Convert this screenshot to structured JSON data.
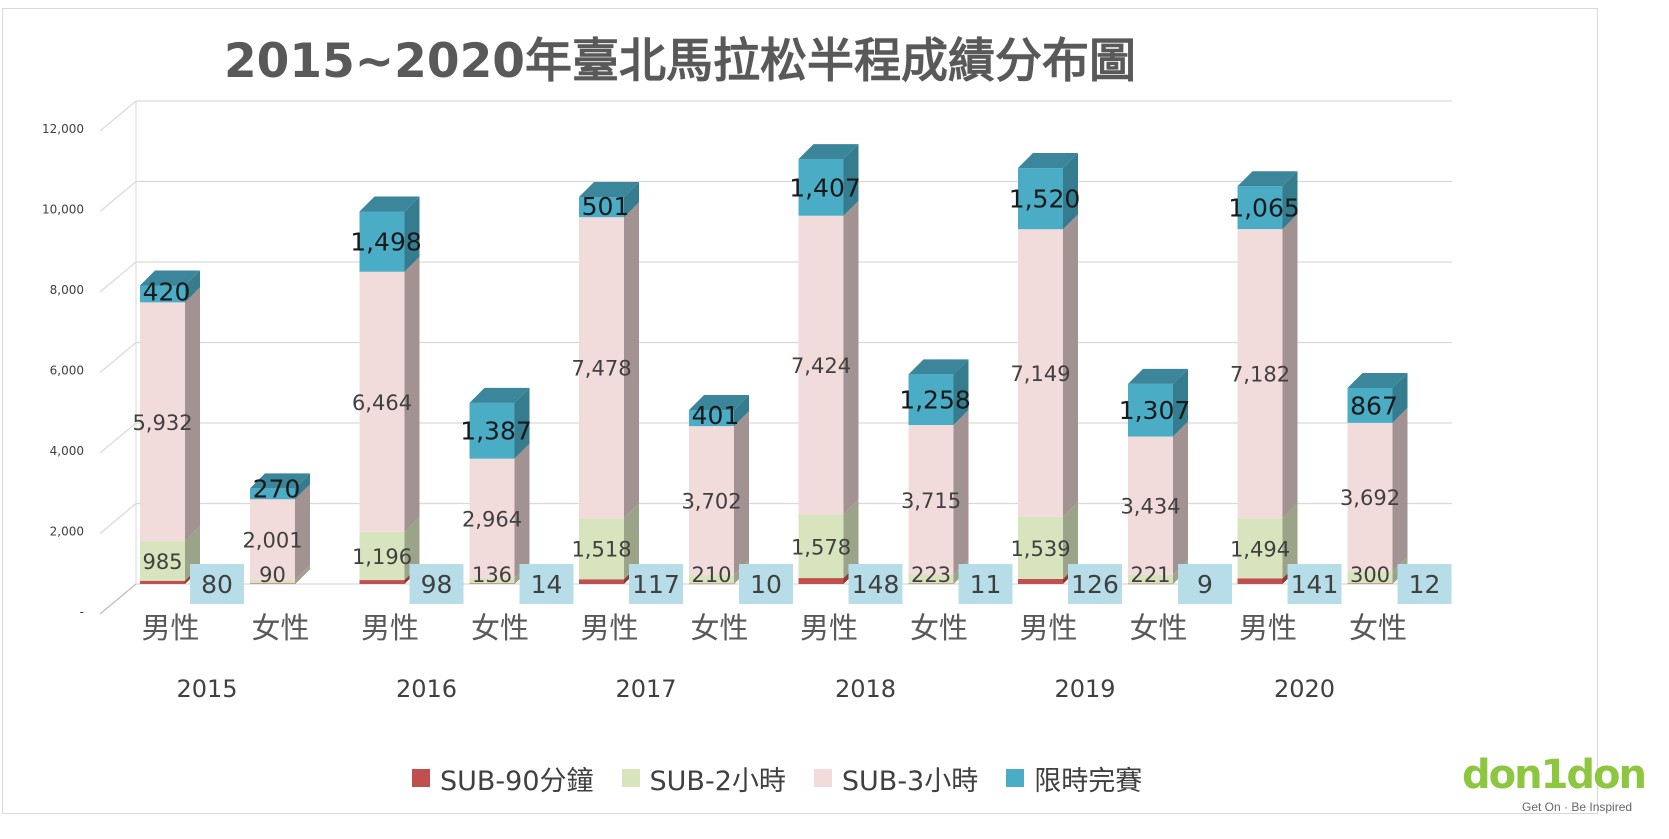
{
  "chart_data": {
    "type": "bar",
    "stacked": true,
    "title": "2015~2020年臺北馬拉松半程成績分布圖",
    "xlabel": "",
    "ylabel": "",
    "ylim": [
      0,
      12000
    ],
    "yticks": [
      {
        "value": 0,
        "label": "-"
      },
      {
        "value": 2000,
        "label": "2,000"
      },
      {
        "value": 4000,
        "label": "4,000"
      },
      {
        "value": 6000,
        "label": "6,000"
      },
      {
        "value": 8000,
        "label": "8,000"
      },
      {
        "value": 10000,
        "label": "10,000"
      },
      {
        "value": 12000,
        "label": "12,000"
      }
    ],
    "grid": true,
    "legend": "bottom",
    "years": [
      "2015",
      "2016",
      "2017",
      "2018",
      "2019",
      "2020"
    ],
    "genders": [
      "男性",
      "女性"
    ],
    "categories": [
      "2015 男性",
      "2015 女性",
      "2016 男性",
      "2016 女性",
      "2017 男性",
      "2017 女性",
      "2018 男性",
      "2018 女性",
      "2019 男性",
      "2019 女性",
      "2020 男性",
      "2020 女性"
    ],
    "series": [
      {
        "name": "SUB-90分鐘",
        "color": "#c0504d",
        "values": [
          80,
          14,
          98,
          14,
          117,
          10,
          148,
          11,
          126,
          9,
          141,
          12
        ]
      },
      {
        "name": "SUB-2小時",
        "color": "#d7e4bd",
        "values": [
          985,
          90,
          1196,
          136,
          1518,
          210,
          1578,
          223,
          1539,
          221,
          1494,
          300
        ]
      },
      {
        "name": "SUB-3小時",
        "color": "#f2dcdb",
        "values": [
          5932,
          2001,
          6464,
          2964,
          7478,
          3702,
          7424,
          3715,
          7149,
          3434,
          7182,
          3692
        ]
      },
      {
        "name": "限時完賽",
        "color": "#4bacc6",
        "values": [
          420,
          270,
          1498,
          1387,
          501,
          401,
          1407,
          1258,
          1520,
          1307,
          1065,
          867
        ]
      }
    ],
    "labels": {
      "SUB-90分鐘": [
        "80",
        "",
        "98",
        "14",
        "117",
        "10",
        "148",
        "11",
        "126",
        "9",
        "141",
        "12"
      ],
      "SUB-2小時": [
        "985",
        "90",
        "1,196",
        "136",
        "1,518",
        "210",
        "1,578",
        "223",
        "1,539",
        "221",
        "1,494",
        "300"
      ],
      "SUB-3小時": [
        "5,932",
        "2,001",
        "6,464",
        "2,964",
        "7,478",
        "3,702",
        "7,424",
        "3,715",
        "7,149",
        "3,434",
        "7,182",
        "3,692"
      ],
      "限時完賽": [
        "420",
        "270",
        "1,498",
        "1,387",
        "501",
        "401",
        "1,407",
        "1,258",
        "1,520",
        "1,307",
        "1,065",
        "867"
      ]
    }
  },
  "logo": {
    "word": "don1don",
    "tagline": "Get On · Be Inspired"
  }
}
